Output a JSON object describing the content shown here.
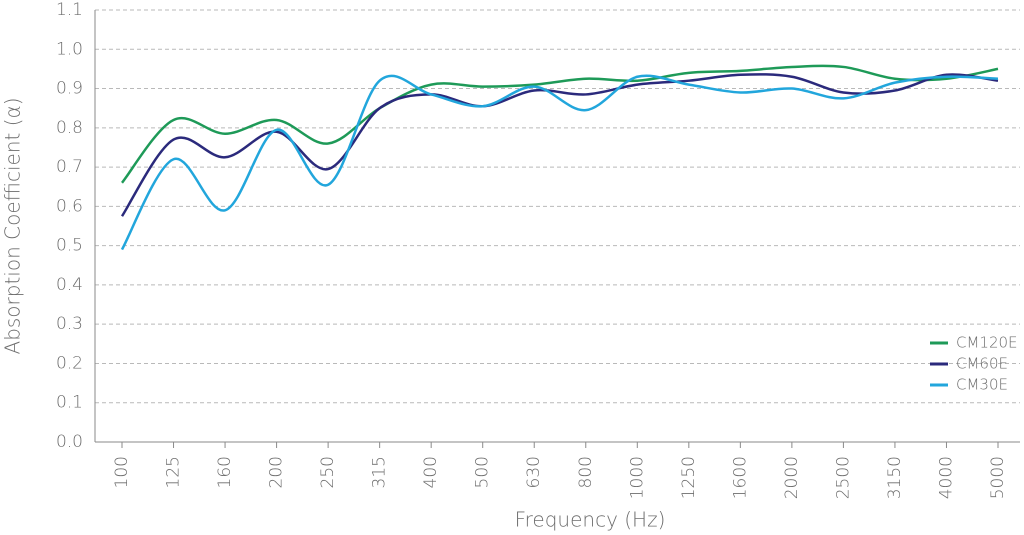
{
  "chart_data": {
    "type": "line",
    "x_label": "Frequency (Hz)",
    "y_label": "Absorption Coefficient (α)",
    "categories": [
      "100",
      "125",
      "160",
      "200",
      "250",
      "315",
      "400",
      "500",
      "630",
      "800",
      "1000",
      "1250",
      "1600",
      "2000",
      "2500",
      "3150",
      "4000",
      "5000"
    ],
    "series": [
      {
        "name": "CM120E",
        "color": "#1e9a58",
        "values": [
          0.66,
          0.82,
          0.785,
          0.82,
          0.76,
          0.85,
          0.91,
          0.905,
          0.91,
          0.925,
          0.92,
          0.94,
          0.945,
          0.955,
          0.955,
          0.925,
          0.925,
          0.95
        ]
      },
      {
        "name": "CM60E",
        "color": "#2b2a7c",
        "values": [
          0.575,
          0.77,
          0.725,
          0.79,
          0.695,
          0.85,
          0.885,
          0.855,
          0.895,
          0.885,
          0.91,
          0.92,
          0.935,
          0.93,
          0.89,
          0.895,
          0.935,
          0.92
        ]
      },
      {
        "name": "CM30E",
        "color": "#22a6dc",
        "values": [
          0.49,
          0.72,
          0.59,
          0.795,
          0.655,
          0.92,
          0.885,
          0.855,
          0.905,
          0.845,
          0.93,
          0.91,
          0.89,
          0.9,
          0.875,
          0.915,
          0.93,
          0.925
        ]
      }
    ],
    "ylim": [
      0,
      1.1
    ],
    "yticks": [
      {
        "value": 0,
        "label": "0.0"
      },
      0.1,
      0.2,
      0.3,
      0.4,
      0.5,
      0.6,
      0.7,
      0.8,
      0.9,
      {
        "value": 1,
        "label": "1.0"
      },
      1.1
    ],
    "grid": true,
    "legend": "lower right"
  }
}
